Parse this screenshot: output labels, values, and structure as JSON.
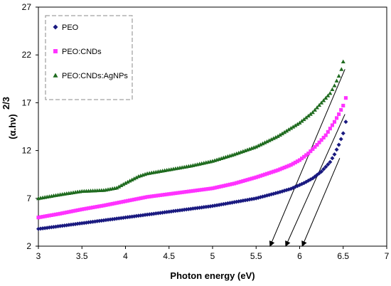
{
  "chart_data": {
    "type": "scatter",
    "xlabel": "Photon energy (eV)",
    "ylabel": "(α.hν)",
    "ylabel_exponent": "2/3",
    "xlim": [
      3,
      7
    ],
    "ylim": [
      2,
      27
    ],
    "xticks": [
      3,
      3.5,
      4,
      4.5,
      5,
      5.5,
      6,
      6.5,
      7
    ],
    "yticks": [
      2,
      7,
      12,
      17,
      22,
      27
    ],
    "grid": false,
    "legend_position": "top-left",
    "series": [
      {
        "name": "PEO",
        "color": "#1a1a80",
        "marker": "diamond",
        "points": [
          [
            3.0,
            3.8
          ],
          [
            3.25,
            4.1
          ],
          [
            3.5,
            4.4
          ],
          [
            3.75,
            4.7
          ],
          [
            4.0,
            5.0
          ],
          [
            4.25,
            5.3
          ],
          [
            4.5,
            5.6
          ],
          [
            4.75,
            5.9
          ],
          [
            5.0,
            6.2
          ],
          [
            5.25,
            6.6
          ],
          [
            5.5,
            7.0
          ],
          [
            5.75,
            7.6
          ],
          [
            5.9,
            8.0
          ],
          [
            6.05,
            8.6
          ],
          [
            6.15,
            9.1
          ],
          [
            6.25,
            9.8
          ],
          [
            6.3,
            10.3
          ],
          [
            6.35,
            10.8
          ],
          [
            6.4,
            11.6
          ],
          [
            6.45,
            12.6
          ],
          [
            6.5,
            13.8
          ],
          [
            6.53,
            15.0
          ]
        ]
      },
      {
        "name": "PEO:CNDs",
        "color": "#ff33ff",
        "marker": "square",
        "points": [
          [
            3.0,
            5.0
          ],
          [
            3.25,
            5.4
          ],
          [
            3.5,
            5.85
          ],
          [
            3.75,
            6.25
          ],
          [
            4.0,
            6.7
          ],
          [
            4.25,
            7.15
          ],
          [
            4.5,
            7.45
          ],
          [
            4.75,
            7.75
          ],
          [
            5.0,
            8.05
          ],
          [
            5.25,
            8.55
          ],
          [
            5.5,
            9.2
          ],
          [
            5.75,
            9.95
          ],
          [
            5.9,
            10.5
          ],
          [
            6.0,
            11.0
          ],
          [
            6.1,
            11.7
          ],
          [
            6.2,
            12.6
          ],
          [
            6.3,
            13.6
          ],
          [
            6.35,
            14.3
          ],
          [
            6.4,
            15.0
          ],
          [
            6.45,
            15.8
          ],
          [
            6.5,
            16.7
          ],
          [
            6.53,
            17.5
          ]
        ]
      },
      {
        "name": "PEO:CNDs:AgNPs",
        "color": "#1f6b1f",
        "marker": "triangle",
        "points": [
          [
            3.0,
            7.0
          ],
          [
            3.25,
            7.4
          ],
          [
            3.5,
            7.75
          ],
          [
            3.75,
            7.85
          ],
          [
            3.9,
            8.1
          ],
          [
            4.0,
            8.6
          ],
          [
            4.15,
            9.3
          ],
          [
            4.25,
            9.6
          ],
          [
            4.5,
            10.0
          ],
          [
            4.75,
            10.4
          ],
          [
            5.0,
            10.9
          ],
          [
            5.25,
            11.6
          ],
          [
            5.5,
            12.4
          ],
          [
            5.75,
            13.5
          ],
          [
            6.0,
            14.9
          ],
          [
            6.15,
            16.0
          ],
          [
            6.25,
            17.0
          ],
          [
            6.35,
            18.0
          ],
          [
            6.4,
            18.8
          ],
          [
            6.45,
            19.8
          ],
          [
            6.48,
            20.5
          ],
          [
            6.5,
            21.3
          ]
        ]
      }
    ],
    "tangent_lines": [
      {
        "from": [
          5.66,
          2.0
        ],
        "to": [
          6.52,
          20.5
        ]
      },
      {
        "from": [
          5.84,
          2.0
        ],
        "to": [
          6.52,
          15.8
        ]
      },
      {
        "from": [
          6.03,
          2.0
        ],
        "to": [
          6.46,
          11.2
        ]
      }
    ]
  }
}
